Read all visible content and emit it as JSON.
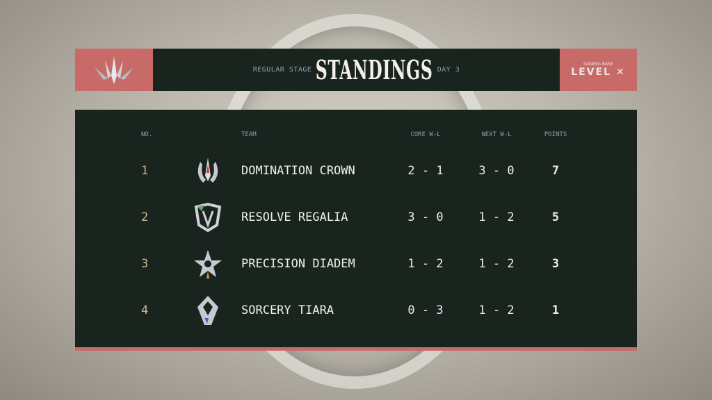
{
  "header": {
    "subtitle_left": "REGULAR STAGE",
    "title": "STANDINGS",
    "subtitle_right": "DAY 3",
    "sponsor_logo": "GAMING BASE LEVEL"
  },
  "colors": {
    "accent": "#c86a68",
    "panel": "#1a241f",
    "rank": "#c9b48a",
    "header_text": "#8e9fb8"
  },
  "table": {
    "columns": [
      "NO.",
      "TEAM",
      "CORE W-L",
      "NEXT W-L",
      "POINTS"
    ],
    "rows": [
      {
        "no": "1",
        "team": "DOMINATION CROWN",
        "core": "2 - 1",
        "next": "3 - 0",
        "points": "7",
        "icon": "crown-emblem-icon"
      },
      {
        "no": "2",
        "team": "RESOLVE REGALIA",
        "core": "3 - 0",
        "next": "1 - 2",
        "points": "5",
        "icon": "shield-emblem-icon"
      },
      {
        "no": "3",
        "team": "PRECISION DIADEM",
        "core": "1 - 2",
        "next": "1 - 2",
        "points": "3",
        "icon": "star-emblem-icon"
      },
      {
        "no": "4",
        "team": "SORCERY TIARA",
        "core": "0 - 3",
        "next": "1 - 2",
        "points": "1",
        "icon": "crystal-emblem-icon"
      }
    ]
  }
}
